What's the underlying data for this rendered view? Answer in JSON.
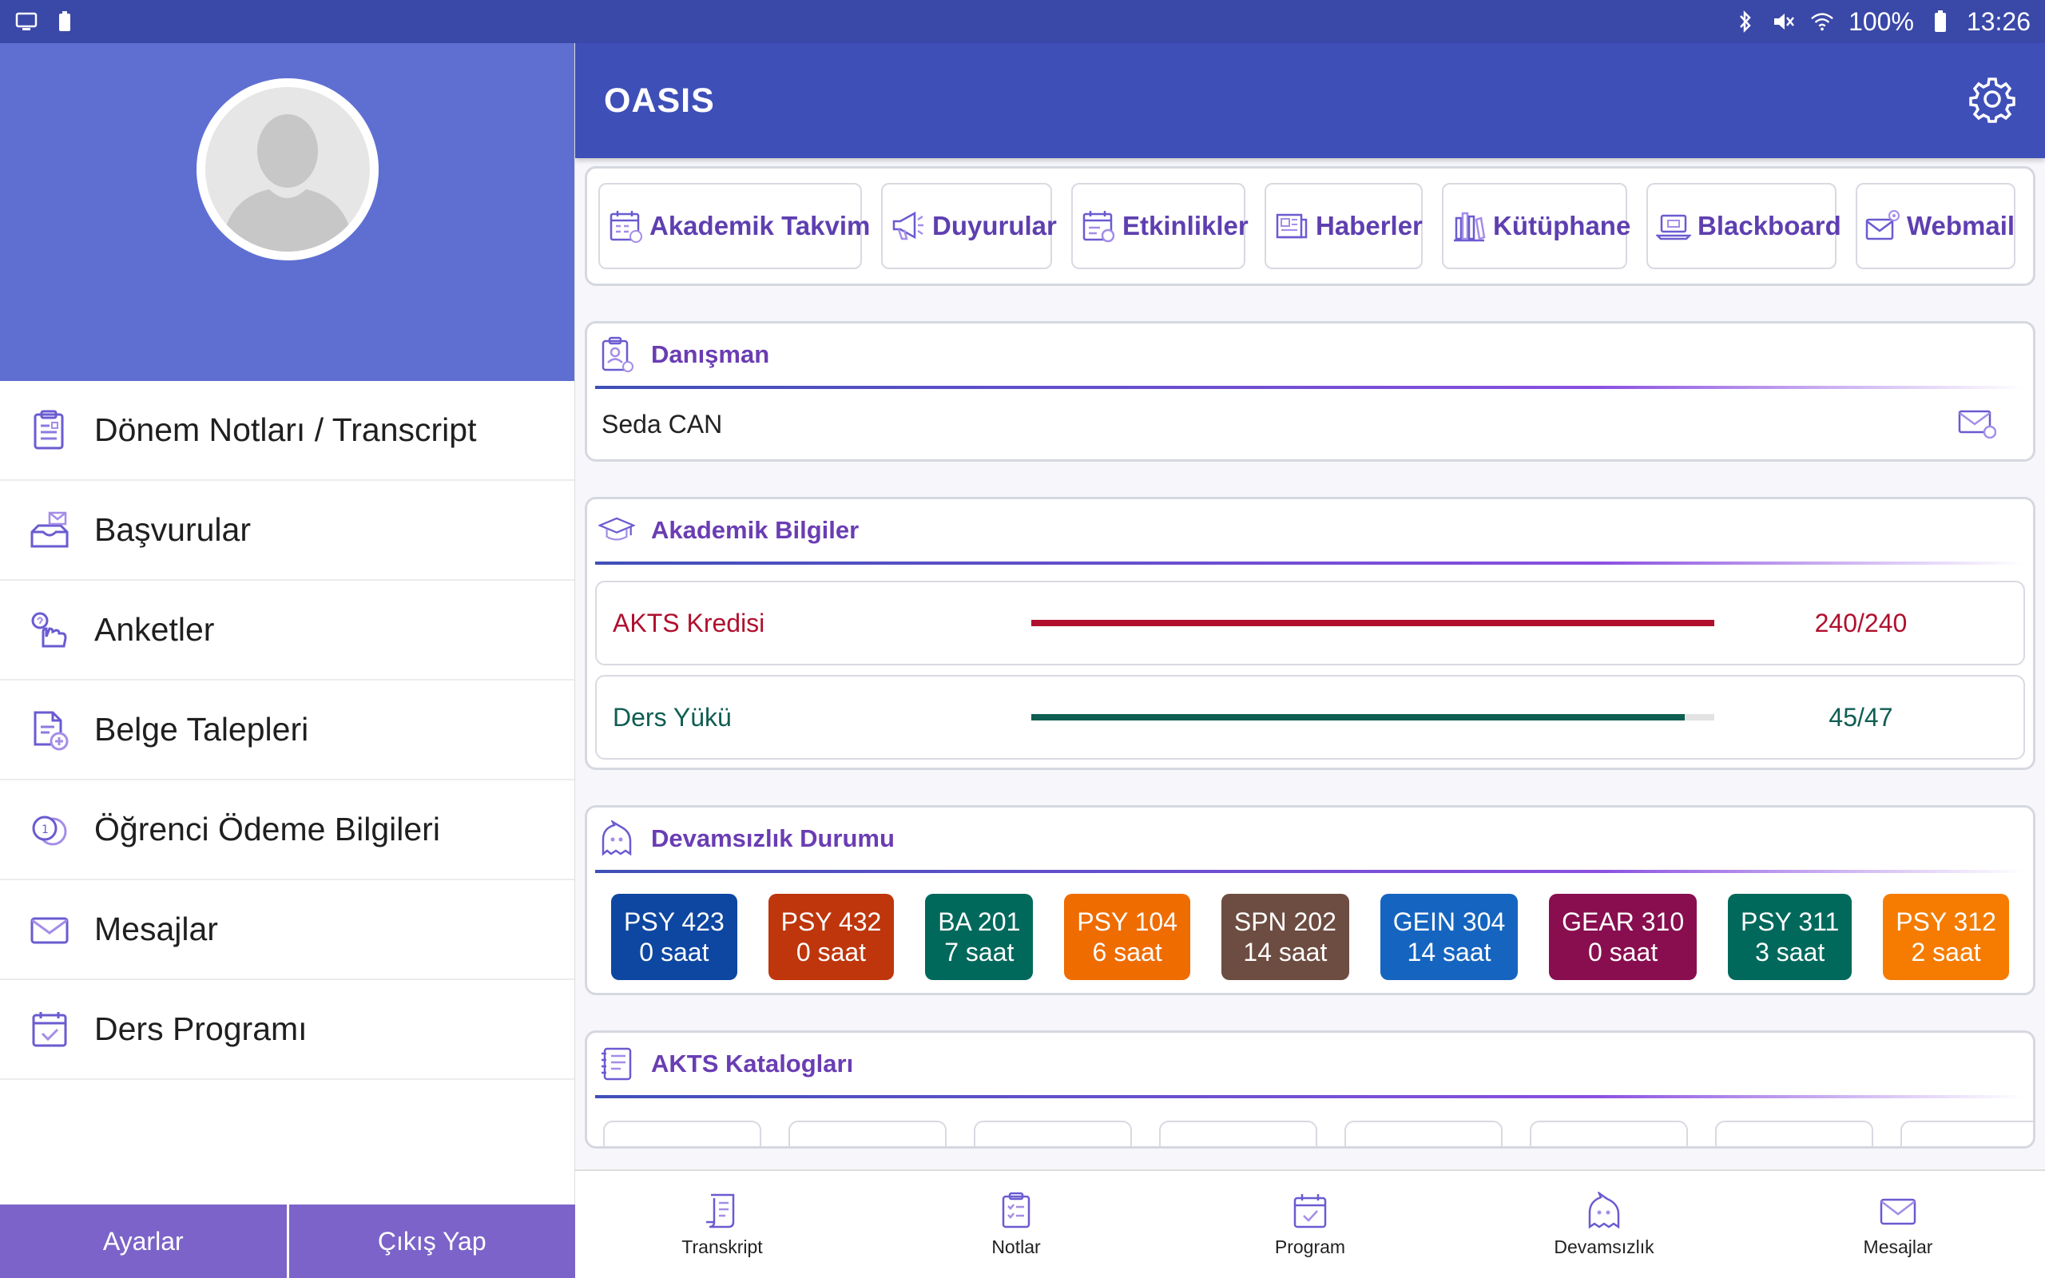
{
  "status_bar": {
    "battery": "100%",
    "time": "13:26"
  },
  "drawer": {
    "menu": [
      {
        "label": "Dönem Notları / Transcript",
        "icon": "transcript-icon"
      },
      {
        "label": "Başvurular",
        "icon": "applications-icon"
      },
      {
        "label": "Anketler",
        "icon": "survey-icon"
      },
      {
        "label": "Belge Talepleri",
        "icon": "document-request-icon"
      },
      {
        "label": "Öğrenci Ödeme Bilgileri",
        "icon": "payment-icon"
      },
      {
        "label": "Mesajlar",
        "icon": "mail-icon"
      },
      {
        "label": "Ders Programı",
        "icon": "calendar-icon"
      }
    ],
    "footer": {
      "settings": "Ayarlar",
      "logout": "Çıkış Yap"
    }
  },
  "appbar": {
    "title": "OASIS"
  },
  "quick_links": [
    {
      "label": "Akademik Takvim",
      "icon": "calendar-icon"
    },
    {
      "label": "Duyurular",
      "icon": "megaphone-icon"
    },
    {
      "label": "Etkinlikler",
      "icon": "event-icon"
    },
    {
      "label": "Haberler",
      "icon": "news-icon"
    },
    {
      "label": "Kütüphane",
      "icon": "library-icon"
    },
    {
      "label": "Blackboard",
      "icon": "laptop-icon"
    },
    {
      "label": "Webmail",
      "icon": "webmail-icon"
    }
  ],
  "advisor": {
    "title": "Danışman",
    "name": "Seda CAN"
  },
  "academic": {
    "title": "Akademik Bilgiler",
    "ects": {
      "label": "AKTS Kredisi",
      "value": "240/240",
      "progress": 1.0,
      "color": "#b0102e"
    },
    "load": {
      "label": "Ders Yükü",
      "value": "45/47",
      "progress": 0.957,
      "color": "#0f5e52"
    }
  },
  "absence": {
    "title": "Devamsızlık Durumu",
    "courses": [
      {
        "code": "PSY 423",
        "hours": "0 saat",
        "color": "#0d47a1"
      },
      {
        "code": "PSY 432",
        "hours": "0 saat",
        "color": "#bf360c"
      },
      {
        "code": "BA 201",
        "hours": "7 saat",
        "color": "#00695c"
      },
      {
        "code": "PSY 104",
        "hours": "6 saat",
        "color": "#ef6c00"
      },
      {
        "code": "SPN 202",
        "hours": "14 saat",
        "color": "#6d4c41"
      },
      {
        "code": "GEIN 304",
        "hours": "14 saat",
        "color": "#1565c0"
      },
      {
        "code": "GEAR 310",
        "hours": "0 saat",
        "color": "#880e4f"
      },
      {
        "code": "PSY 311",
        "hours": "3 saat",
        "color": "#00695c"
      },
      {
        "code": "PSY 312",
        "hours": "2 saat",
        "color": "#f57c00"
      }
    ]
  },
  "catalogs": {
    "title": "AKTS Katalogları"
  },
  "bottom_nav": [
    {
      "label": "Transkript",
      "icon": "transcript-icon"
    },
    {
      "label": "Notlar",
      "icon": "grades-icon"
    },
    {
      "label": "Program",
      "icon": "calendar-icon"
    },
    {
      "label": "Devamsızlık",
      "icon": "absence-icon"
    },
    {
      "label": "Mesajlar",
      "icon": "mail-icon"
    }
  ]
}
